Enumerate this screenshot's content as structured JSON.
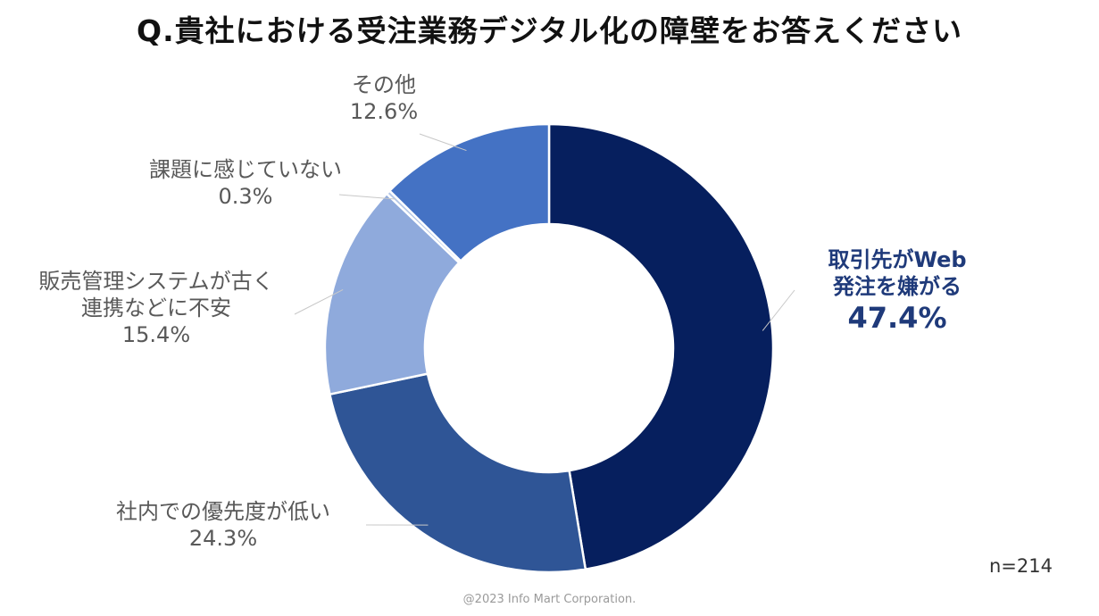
{
  "title": "Q.貴社における受注業務デジタル化の障壁をお答えください",
  "chart_data": {
    "type": "pie",
    "subtype": "donut",
    "title": "Q.貴社における受注業務デジタル化の障壁をお答えください",
    "start": "top",
    "direction": "clockwise",
    "slices": [
      {
        "label_lines": [
          "取引先がWeb",
          "発注を嫌がる"
        ],
        "label": "取引先がWeb発注を嫌がる",
        "value": 47.4,
        "value_label": "47.4%",
        "color": "#061f5e"
      },
      {
        "label_lines": [
          "社内での優先度が低い"
        ],
        "label": "社内での優先度が低い",
        "value": 24.3,
        "value_label": "24.3%",
        "color": "#2f5596"
      },
      {
        "label_lines": [
          "販売管理システムが古く",
          "連携などに不安"
        ],
        "label": "販売管理システムが古く連携などに不安",
        "value": 15.4,
        "value_label": "15.4%",
        "color": "#8faadc"
      },
      {
        "label_lines": [
          "課題に感じていない"
        ],
        "label": "課題に感じていない",
        "value": 0.3,
        "value_label": "0.3%",
        "color": "#b4c7e7"
      },
      {
        "label_lines": [
          "その他"
        ],
        "label": "その他",
        "value": 12.6,
        "value_label": "12.6%",
        "color": "#4472c4"
      }
    ]
  },
  "sample_size": "n=214",
  "copyright": "@2023 Info Mart Corporation."
}
